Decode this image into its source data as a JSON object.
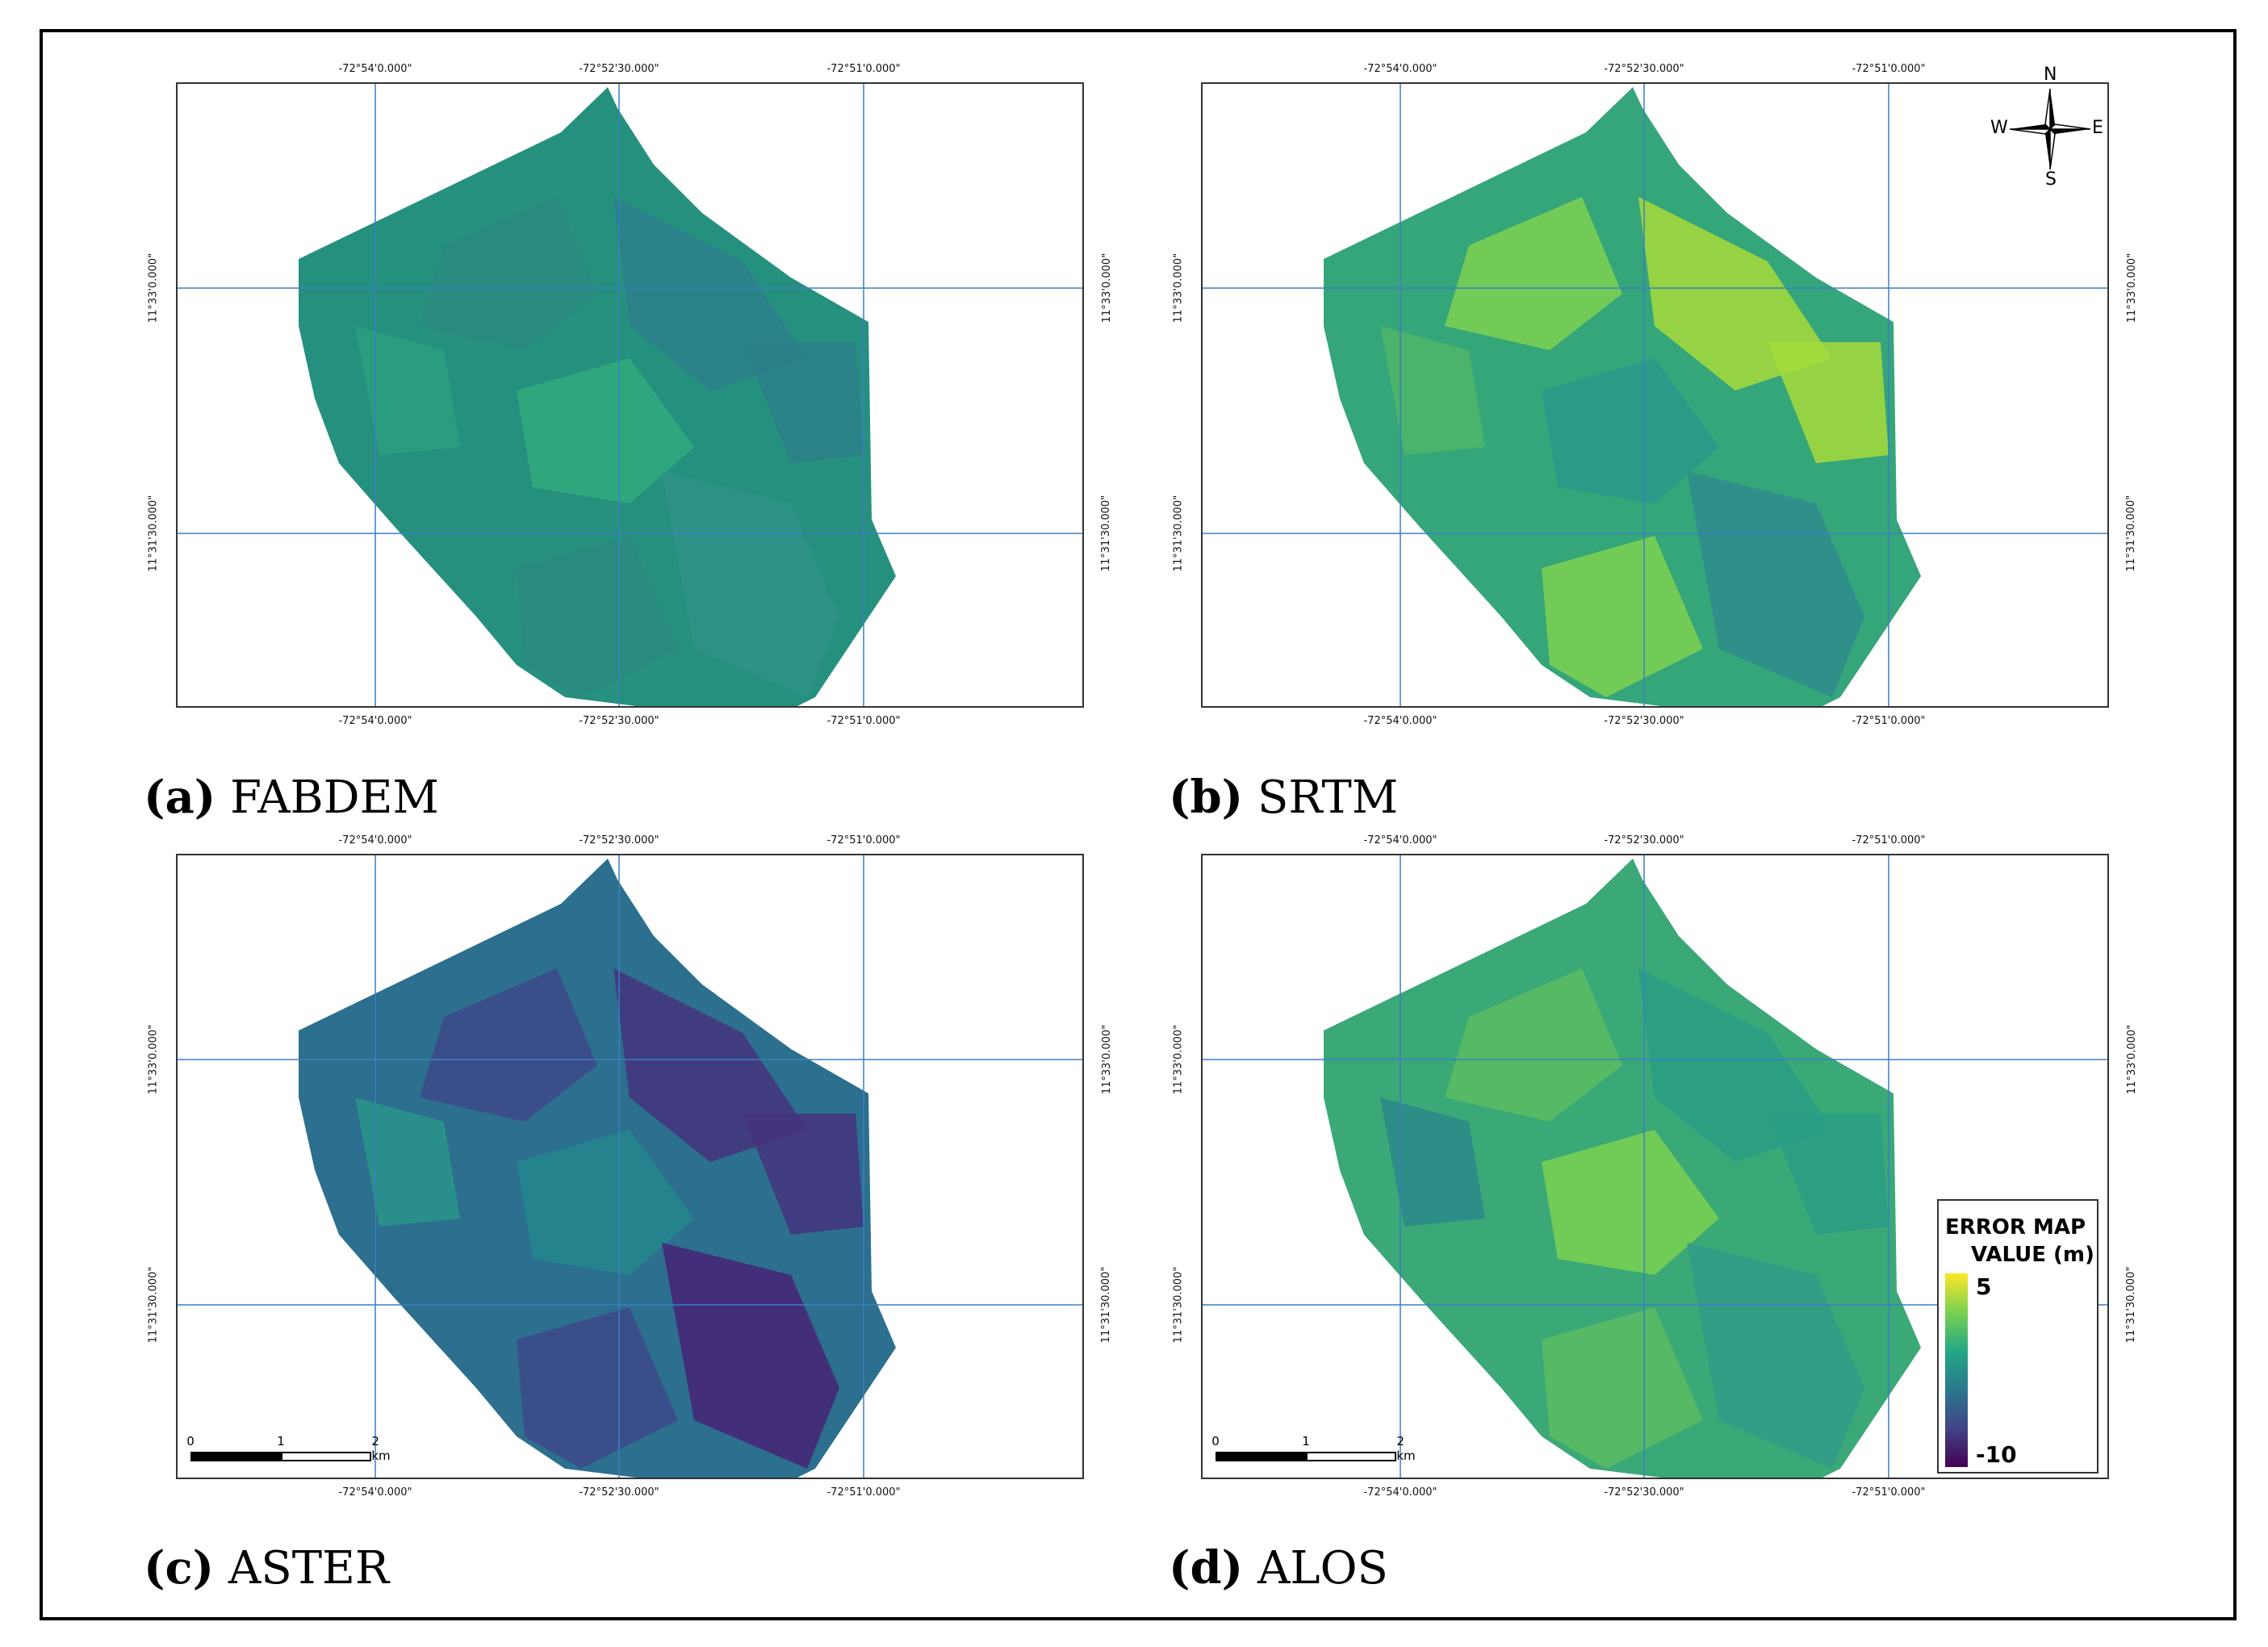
{
  "panels": [
    {
      "id": "a",
      "letter": "(a)",
      "name": "FABDEM",
      "base": "#26907f",
      "accents": [
        "#2a8a80",
        "#2c7f88",
        "#2ba07f",
        "#31ac7b",
        "#2f948a"
      ]
    },
    {
      "id": "b",
      "letter": "(b)",
      "name": "SRTM",
      "base": "#35a57a",
      "accents": [
        "#7bd150",
        "#a6db3c",
        "#4db56a",
        "#2a988a",
        "#2e8b8c"
      ]
    },
    {
      "id": "c",
      "letter": "(c)",
      "name": "ASTER",
      "base": "#2c6f8e",
      "accents": [
        "#3d4a89",
        "#45337c",
        "#2a958a",
        "#25878d",
        "#482576"
      ]
    },
    {
      "id": "d",
      "letter": "(d)",
      "name": "ALOS",
      "base": "#3aa877",
      "accents": [
        "#5cbc61",
        "#2a9e85",
        "#2a8a8a",
        "#7ad151",
        "#319a86"
      ]
    }
  ],
  "axes": {
    "lon_ticks": [
      "-72°54'0.000\"",
      "-72°52'30.000\"",
      "-72°51'0.000\""
    ],
    "lat_ticks": [
      "11°33'0.000\"",
      "11°31'30.000\""
    ]
  },
  "scalebar": {
    "labels": [
      "0",
      "1",
      "2 km"
    ]
  },
  "compass": {
    "n": "N",
    "s": "S",
    "e": "E",
    "w": "W"
  },
  "legend": {
    "title_line1": "ERROR MAP",
    "title_line2": "VALUE (m)",
    "max": "5",
    "min": "-10",
    "colors": [
      "#fde725",
      "#7ad151",
      "#22a884",
      "#2a788e",
      "#414487",
      "#440154"
    ]
  }
}
